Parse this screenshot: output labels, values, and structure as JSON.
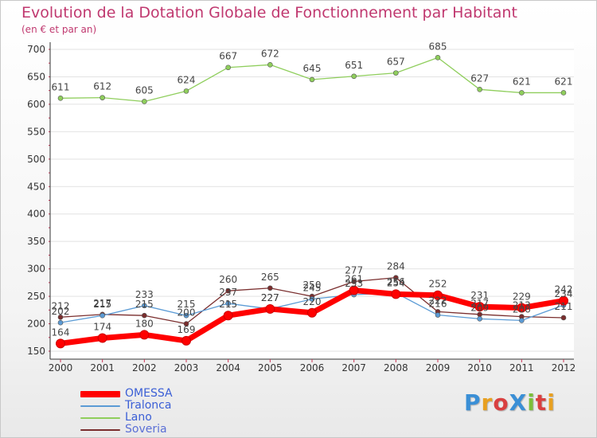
{
  "title": "Evolution de la Dotation Globale de Fonctionnement par Habitant",
  "subtitle": "(en € et par an)",
  "logo": {
    "text": "ProXiti",
    "letter_colors": [
      "#3a8fd6",
      "#e8a020",
      "#d94040",
      "#3a8fd6",
      "#7cbf3a",
      "#d94040",
      "#e8a020"
    ]
  },
  "chart_data": {
    "type": "line",
    "x": [
      "2000",
      "2001",
      "2002",
      "2003",
      "2004",
      "2005",
      "2006",
      "2007",
      "2008",
      "2009",
      "2010",
      "2011",
      "2012"
    ],
    "ylim": [
      150,
      700
    ],
    "yticks": [
      "150",
      "200",
      "250",
      "300",
      "350",
      "400",
      "450",
      "500",
      "550",
      "600",
      "650",
      "700"
    ],
    "grid": "horizontal",
    "legend_position": "bottom-left",
    "series": [
      {
        "name": "OMESSA",
        "color": "#ff0000",
        "values": [
          164,
          174,
          180,
          169,
          215,
          227,
          220,
          261,
          254,
          252,
          231,
          229,
          242
        ]
      },
      {
        "name": "Tralonca",
        "color": "#5b9bd5",
        "values": [
          202,
          215,
          233,
          215,
          237,
          227,
          245,
          253,
          256,
          216,
          209,
          206,
          234
        ]
      },
      {
        "name": "Lano",
        "color": "#8fce5c",
        "values": [
          611,
          612,
          605,
          624,
          667,
          672,
          645,
          651,
          657,
          685,
          627,
          621,
          621
        ]
      },
      {
        "name": "Soveria",
        "color": "#7a2e2e",
        "values": [
          212,
          217,
          215,
          200,
          260,
          265,
          250,
          277,
          284,
          222,
          217,
          213,
          211
        ]
      }
    ]
  }
}
